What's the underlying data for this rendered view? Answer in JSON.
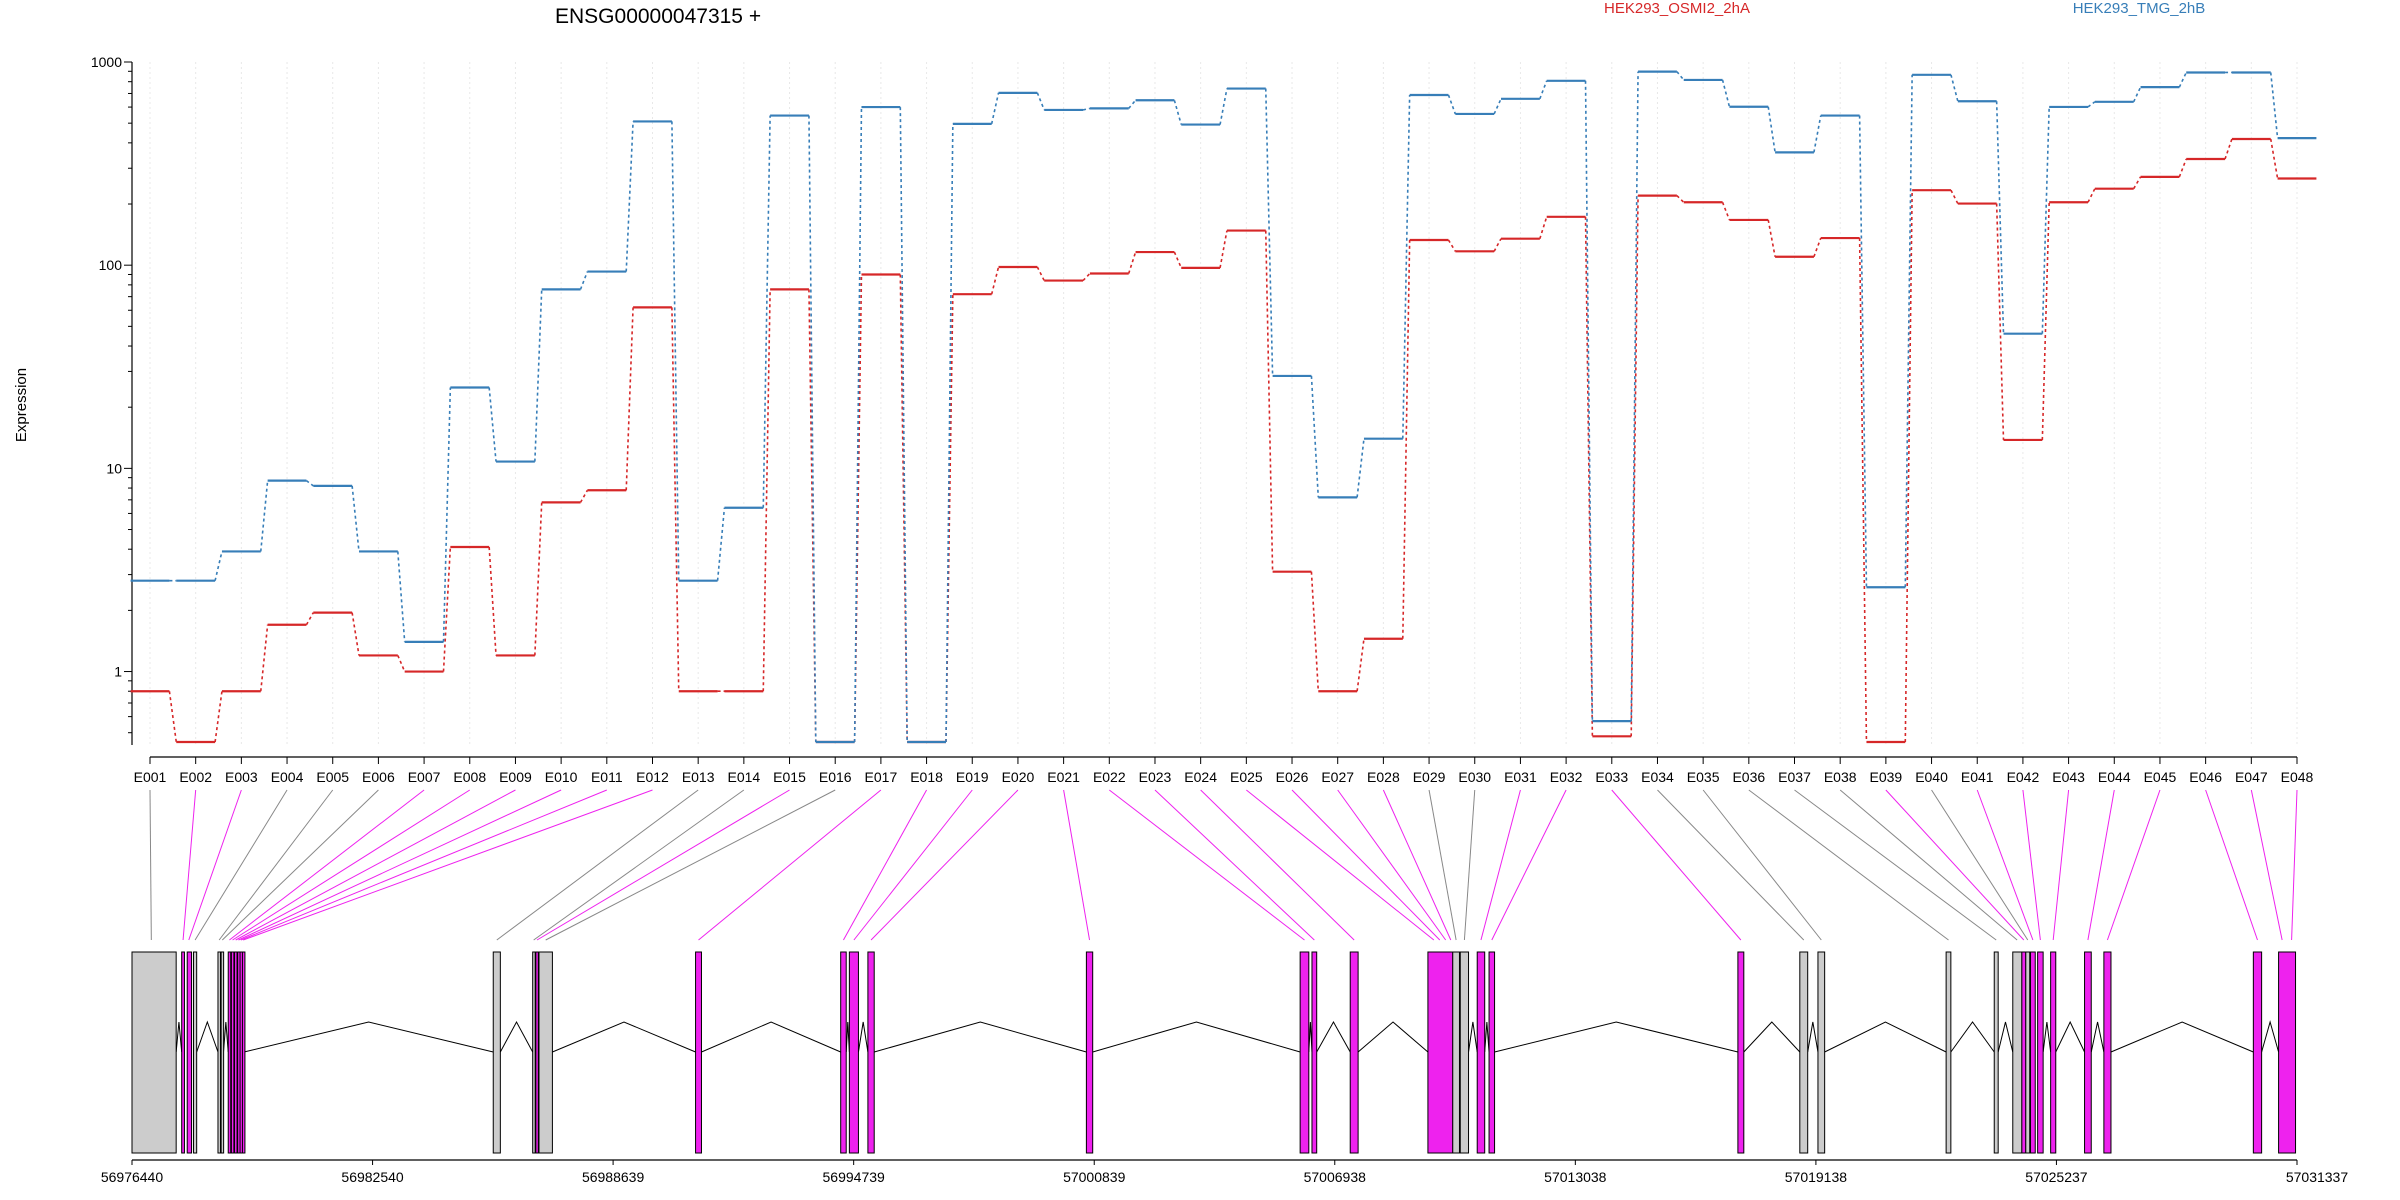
{
  "chart_data": {
    "type": "line",
    "title": "ENSG00000047315 +",
    "ylabel": "Expression",
    "y_scale": "log",
    "yticks": [
      1,
      10,
      100,
      1000
    ],
    "ytick_labels": [
      "1",
      "10",
      "100",
      "1000"
    ],
    "legend_placement": "top",
    "colors": {
      "HEK293_OSMI2_2hA": "#d62728",
      "HEK293_TMG_2hB": "#377eb8",
      "spliced_exon": "#ee22ee",
      "unspliced_exon": "#cccccc",
      "intron": "#000000"
    },
    "categories": [
      "E001",
      "E002",
      "E003",
      "E004",
      "E005",
      "E006",
      "E007",
      "E008",
      "E009",
      "E010",
      "E011",
      "E012",
      "E013",
      "E014",
      "E015",
      "E016",
      "E017",
      "E018",
      "E019",
      "E020",
      "E021",
      "E022",
      "E023",
      "E024",
      "E025",
      "E026",
      "E027",
      "E028",
      "E029",
      "E030",
      "E031",
      "E032",
      "E033",
      "E034",
      "E035",
      "E036",
      "E037",
      "E038",
      "E039",
      "E040",
      "E041",
      "E042",
      "E043",
      "E044",
      "E045",
      "E046",
      "E047",
      "E048"
    ],
    "series": [
      {
        "name": "HEK293_OSMI2_2hA",
        "color": "#d62728",
        "values": [
          0.8,
          0.45,
          0.8,
          1.7,
          1.95,
          1.2,
          1.0,
          4.1,
          1.2,
          6.8,
          7.8,
          62,
          0.8,
          0.8,
          76,
          0.45,
          90,
          0.45,
          72,
          98,
          84,
          91,
          116,
          97,
          148,
          3.1,
          0.8,
          1.45,
          133,
          117,
          135,
          173,
          0.48,
          220,
          204,
          167,
          110,
          136,
          0.45,
          234,
          201,
          13.8,
          204,
          238,
          272,
          333,
          418,
          267
        ]
      },
      {
        "name": "HEK293_TMG_2hB",
        "color": "#377eb8",
        "values": [
          2.8,
          2.8,
          3.9,
          8.7,
          8.2,
          3.9,
          1.4,
          25,
          10.8,
          76,
          93,
          510,
          2.8,
          6.4,
          545,
          0.45,
          600,
          0.45,
          496,
          705,
          581,
          591,
          648,
          492,
          740,
          28.5,
          7.2,
          14,
          688,
          555,
          659,
          808,
          0.57,
          897,
          816,
          602,
          359,
          545,
          2.6,
          865,
          641,
          46,
          601,
          637,
          752,
          888,
          888,
          422
        ]
      }
    ],
    "gene_model": {
      "genomic_ticks": [
        "56976440",
        "56982540",
        "56988639",
        "56994739",
        "57000839",
        "57006938",
        "57013038",
        "57019138",
        "57025237",
        "57031337"
      ],
      "exons": [
        {
          "start": 56976440,
          "end": 56977560,
          "type": "unspliced"
        },
        {
          "start": 56977700,
          "end": 56977770,
          "type": "spliced"
        },
        {
          "start": 56977840,
          "end": 56977950,
          "type": "spliced"
        },
        {
          "start": 56978000,
          "end": 56978080,
          "type": "unspliced"
        },
        {
          "start": 56978620,
          "end": 56978680,
          "type": "unspliced"
        },
        {
          "start": 56978700,
          "end": 56978760,
          "type": "unspliced"
        },
        {
          "start": 56978880,
          "end": 56978940,
          "type": "spliced"
        },
        {
          "start": 56978960,
          "end": 56979020,
          "type": "spliced"
        },
        {
          "start": 56979040,
          "end": 56979100,
          "type": "spliced"
        },
        {
          "start": 56979120,
          "end": 56979160,
          "type": "spliced"
        },
        {
          "start": 56979180,
          "end": 56979220,
          "type": "spliced"
        },
        {
          "start": 56979240,
          "end": 56979280,
          "type": "spliced"
        },
        {
          "start": 56985600,
          "end": 56985780,
          "type": "unspliced"
        },
        {
          "start": 56986600,
          "end": 56986650,
          "type": "unspliced"
        },
        {
          "start": 56986680,
          "end": 56986740,
          "type": "spliced"
        },
        {
          "start": 56986760,
          "end": 56987100,
          "type": "unspliced"
        },
        {
          "start": 56990730,
          "end": 56990880,
          "type": "spliced"
        },
        {
          "start": 56994410,
          "end": 56994550,
          "type": "spliced"
        },
        {
          "start": 56994630,
          "end": 56994860,
          "type": "spliced"
        },
        {
          "start": 56995100,
          "end": 56995260,
          "type": "spliced"
        },
        {
          "start": 57000640,
          "end": 57000800,
          "type": "spliced"
        },
        {
          "start": 57006060,
          "end": 57006280,
          "type": "spliced"
        },
        {
          "start": 57006360,
          "end": 57006480,
          "type": "spliced"
        },
        {
          "start": 57007330,
          "end": 57007530,
          "type": "spliced"
        },
        {
          "start": 57009300,
          "end": 57009930,
          "type": "spliced"
        },
        {
          "start": 57009930,
          "end": 57010100,
          "type": "unspliced"
        },
        {
          "start": 57010120,
          "end": 57010330,
          "type": "unspliced"
        },
        {
          "start": 57010550,
          "end": 57010740,
          "type": "spliced"
        },
        {
          "start": 57010850,
          "end": 57010990,
          "type": "spliced"
        },
        {
          "start": 57017160,
          "end": 57017310,
          "type": "spliced"
        },
        {
          "start": 57018730,
          "end": 57018930,
          "type": "unspliced"
        },
        {
          "start": 57019190,
          "end": 57019360,
          "type": "unspliced"
        },
        {
          "start": 57022440,
          "end": 57022560,
          "type": "unspliced"
        },
        {
          "start": 57023660,
          "end": 57023760,
          "type": "unspliced"
        },
        {
          "start": 57024130,
          "end": 57024360,
          "type": "unspliced"
        },
        {
          "start": 57024360,
          "end": 57024460,
          "type": "spliced"
        },
        {
          "start": 57024460,
          "end": 57024560,
          "type": "unspliced"
        },
        {
          "start": 57024580,
          "end": 57024700,
          "type": "spliced"
        },
        {
          "start": 57024760,
          "end": 57024900,
          "type": "spliced"
        },
        {
          "start": 57025090,
          "end": 57025220,
          "type": "spliced"
        },
        {
          "start": 57025950,
          "end": 57026120,
          "type": "spliced"
        },
        {
          "start": 57026440,
          "end": 57026620,
          "type": "spliced"
        },
        {
          "start": 57030230,
          "end": 57030440,
          "type": "spliced"
        },
        {
          "start": 57030870,
          "end": 57031300,
          "type": "spliced"
        }
      ],
      "exon_anchors": [
        56976930,
        56977735,
        56977880,
        56978040,
        56978650,
        56978730,
        56978910,
        56978990,
        56979070,
        56979140,
        56979200,
        56979260,
        56985690,
        56986625,
        56986710,
        56986930,
        56990805,
        56994480,
        56994745,
        56995180,
        57000720,
        57006170,
        57006420,
        57007430,
        57009450,
        57009600,
        57009750,
        57009880,
        57010015,
        57010225,
        57010645,
        57010920,
        57017235,
        57018830,
        57019275,
        57022500,
        57023710,
        57024240,
        57024410,
        57024510,
        57024640,
        57024830,
        57025155,
        57026035,
        57026530,
        57030335,
        57030960,
        57031200
      ]
    }
  }
}
